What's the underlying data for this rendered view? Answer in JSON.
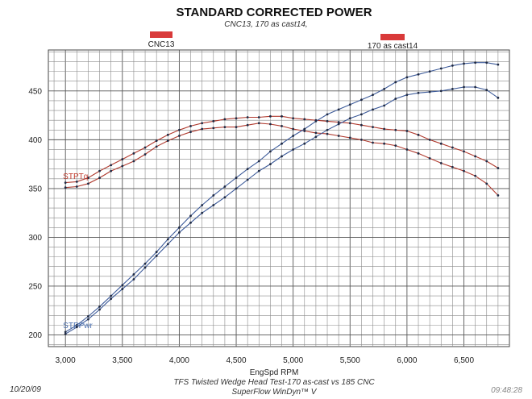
{
  "chart_data": {
    "type": "line",
    "title": "STANDARD CORRECTED POWER",
    "subtitle": "CNC13, 170 as cast14,",
    "xlabel": "EngSpd  RPM",
    "ylabel": "",
    "xlim": [
      2850,
      6900
    ],
    "ylim": [
      188,
      492
    ],
    "x_ticks": [
      3000,
      3500,
      4000,
      4500,
      5000,
      5500,
      6000,
      6500
    ],
    "x_tick_labels": [
      "3,000",
      "3,500",
      "4,000",
      "4,500",
      "5,000",
      "5,500",
      "6,000",
      "6,500"
    ],
    "y_ticks": [
      200,
      250,
      300,
      350,
      400,
      450
    ],
    "y_tick_labels": [
      "200",
      "250",
      "300",
      "350",
      "400",
      "450"
    ],
    "legend": [
      {
        "label": "CNC13",
        "color": "#d93a3a"
      },
      {
        "label": "170 as cast14",
        "color": "#d93a3a"
      }
    ],
    "annotations": [
      {
        "text": "STPTq",
        "x": 3000,
        "y": 360,
        "color": "#c0392b"
      },
      {
        "text": "STPPwr",
        "x": 3000,
        "y": 207,
        "color": "#4a6fb0"
      }
    ],
    "x": [
      3000,
      3100,
      3200,
      3300,
      3400,
      3500,
      3600,
      3700,
      3800,
      3900,
      4000,
      4100,
      4200,
      4300,
      4400,
      4500,
      4600,
      4700,
      4800,
      4900,
      5000,
      5100,
      5200,
      5300,
      5400,
      5500,
      5600,
      5700,
      5800,
      5900,
      6000,
      6100,
      6200,
      6300,
      6400,
      6500,
      6600,
      6700,
      6800
    ],
    "series": [
      {
        "name": "CNC13 STPTq",
        "color": "#b03a2e",
        "values": [
          356,
          357,
          361,
          368,
          374,
          380,
          386,
          392,
          399,
          405,
          410,
          414,
          417,
          419,
          421,
          422,
          423,
          423,
          424,
          424,
          422,
          421,
          420,
          419,
          418,
          417,
          415,
          413,
          411,
          410,
          409,
          405,
          400,
          396,
          392,
          388,
          383,
          378,
          371
        ]
      },
      {
        "name": "170 as cast14 STPTq",
        "color": "#b03a2e",
        "values": [
          351,
          352,
          355,
          361,
          368,
          373,
          378,
          385,
          393,
          399,
          404,
          408,
          411,
          412,
          413,
          413,
          415,
          417,
          416,
          414,
          411,
          409,
          407,
          406,
          404,
          402,
          400,
          397,
          396,
          394,
          390,
          386,
          381,
          376,
          372,
          368,
          363,
          355,
          343
        ]
      },
      {
        "name": "CNC13 STPPwr",
        "color": "#3c5a99",
        "values": [
          203,
          210,
          219,
          229,
          240,
          251,
          262,
          273,
          285,
          298,
          310,
          322,
          333,
          343,
          352,
          361,
          370,
          378,
          388,
          396,
          404,
          411,
          419,
          426,
          431,
          436,
          441,
          446,
          452,
          459,
          464,
          467,
          470,
          473,
          476,
          478,
          479,
          479,
          477
        ]
      },
      {
        "name": "170 as cast14 STPPwr",
        "color": "#3c5a99",
        "values": [
          201,
          208,
          216,
          226,
          237,
          247,
          257,
          269,
          281,
          293,
          305,
          315,
          325,
          333,
          341,
          350,
          359,
          368,
          375,
          383,
          390,
          396,
          403,
          410,
          416,
          422,
          426,
          431,
          435,
          442,
          446,
          448,
          449,
          450,
          452,
          454,
          454,
          451,
          443
        ]
      }
    ]
  },
  "footer": {
    "date": "10/20/09",
    "line1": "TFS Twisted Wedge Head Test-170 as-cast vs 185 CNC",
    "line2": "SuperFlow WinDyn™ V",
    "time": "09:48:28"
  }
}
